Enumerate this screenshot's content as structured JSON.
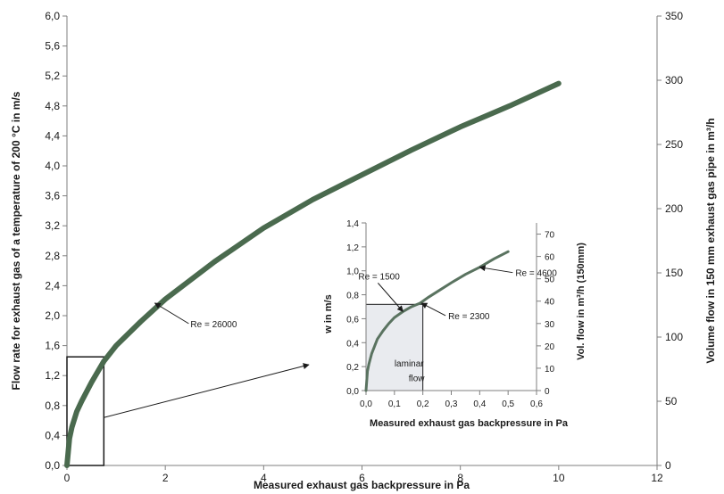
{
  "chart_data": [
    {
      "type": "line",
      "xlabel": "Measured exhaust gas backpressure in Pa",
      "ylabel": "Flow rate for exhaust gas of a temperature of 200 °C in m/s",
      "y2label": "Volume flow in 150 mm exhaust gas pipe in m³/h",
      "xlim": [
        0,
        12
      ],
      "ylim": [
        0,
        6.0
      ],
      "y2lim": [
        0,
        350
      ],
      "xticks": [
        "0",
        "2",
        "4",
        "6",
        "8",
        "10",
        "12"
      ],
      "yticks": [
        "0,0",
        "0,4",
        "0,8",
        "1,2",
        "1,6",
        "2,0",
        "2,4",
        "2,8",
        "3,2",
        "3,6",
        "4,0",
        "4,4",
        "4,8",
        "5,2",
        "5,6",
        "6,0"
      ],
      "y2ticks": [
        "0",
        "50",
        "100",
        "150",
        "200",
        "250",
        "300",
        "350"
      ],
      "series": [
        {
          "color": "#4a6a4e",
          "x": [
            0,
            0.05,
            0.1,
            0.2,
            0.3,
            0.5,
            0.75,
            1,
            1.5,
            2,
            3,
            4,
            5,
            6,
            7,
            8,
            9,
            10
          ],
          "y": [
            0,
            0.36,
            0.51,
            0.72,
            0.86,
            1.11,
            1.39,
            1.6,
            1.92,
            2.22,
            2.72,
            3.17,
            3.55,
            3.88,
            4.21,
            4.52,
            4.8,
            5.1
          ]
        }
      ],
      "annotations": [
        {
          "text": "Re = 26000",
          "x": 1.75,
          "y": 2.18
        }
      ],
      "grid": false,
      "highlight_box": {
        "x": [
          0,
          0.75
        ],
        "y": [
          0,
          1.45
        ]
      }
    },
    {
      "type": "line",
      "xlabel": "Measured exhaust gas backpressure in Pa",
      "ylabel": "w in m/s",
      "y2label": "Vol. flow in m³/h (150mm)",
      "xlim": [
        0,
        0.6
      ],
      "ylim": [
        0,
        1.4
      ],
      "y2lim": [
        0,
        75
      ],
      "xticks": [
        "0,0",
        "0,1",
        "0,2",
        "0,3",
        "0,4",
        "0,5",
        "0,6"
      ],
      "yticks": [
        "0,0",
        "0,2",
        "0,4",
        "0,6",
        "0,8",
        "1,0",
        "1,2",
        "1,4"
      ],
      "y2ticks": [
        "0",
        "10",
        "20",
        "30",
        "40",
        "50",
        "60",
        "70"
      ],
      "series": [
        {
          "color": "#5a7360",
          "x": [
            0,
            0.005,
            0.01,
            0.02,
            0.04,
            0.06,
            0.08,
            0.1,
            0.13,
            0.16,
            0.19,
            0.22,
            0.26,
            0.3,
            0.35,
            0.4,
            0.45,
            0.5
          ],
          "y": [
            0,
            0.16,
            0.22,
            0.31,
            0.43,
            0.5,
            0.56,
            0.61,
            0.66,
            0.7,
            0.73,
            0.78,
            0.84,
            0.9,
            0.97,
            1.03,
            1.1,
            1.16
          ]
        }
      ],
      "annotations": [
        {
          "text": "Re = 1500",
          "x": 0.13,
          "y": 0.66
        },
        {
          "text": "Re = 2300",
          "x": 0.195,
          "y": 0.73
        },
        {
          "text": "Re = 4600",
          "x": 0.4,
          "y": 1.03
        },
        {
          "text": "laminar",
          "x": 0.1,
          "y": 0.2
        },
        {
          "text": "flow",
          "x": 0.15,
          "y": 0.08
        }
      ],
      "laminar_region": {
        "x": [
          0,
          0.2
        ],
        "y": [
          0,
          0.72
        ]
      },
      "grid": false
    }
  ]
}
